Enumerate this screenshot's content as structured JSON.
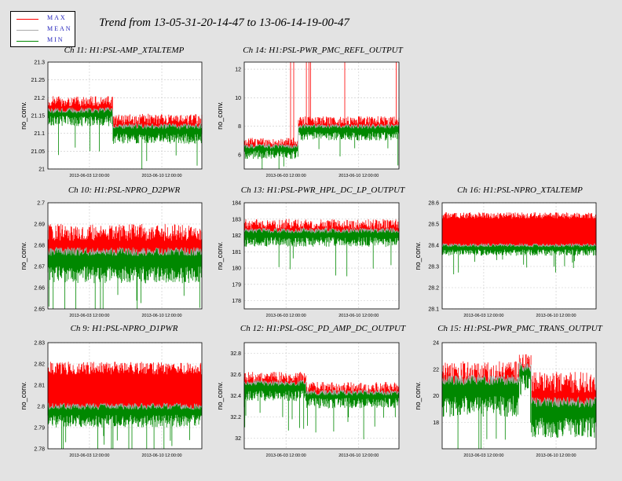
{
  "title": "Trend from 13-05-31-20-14-47 to 13-06-14-19-00-47",
  "legend": [
    {
      "label": "MAX",
      "color": "#ff0000"
    },
    {
      "label": "MEAN",
      "color": "#aaaaaa"
    },
    {
      "label": "MIN",
      "color": "#008800"
    }
  ],
  "chart_data": [
    {
      "type": "line",
      "title": "Ch 11: H1:PSL-AMP_XTALTEMP",
      "ylabel": "no_conv.",
      "ylim": [
        21,
        21.3
      ],
      "yticks": [
        21,
        21.05,
        21.1,
        21.15,
        21.2,
        21.25,
        21.3
      ],
      "xticks": [
        "2013-06-03 12:00:00",
        "2013-06-10 12:00:00"
      ],
      "segments": [
        [
          0,
          0.42,
          21.19,
          21.165,
          21.15
        ],
        [
          0.42,
          1,
          21.14,
          21.12,
          21.1
        ]
      ],
      "noise": 0.015,
      "spikes": []
    },
    {
      "type": "line",
      "title": "Ch 14: H1:PSL-PWR_PMC_REFL_OUTPUT",
      "ylabel": "no_conv.",
      "ylim": [
        5,
        12.5
      ],
      "yticks": [
        6,
        8,
        10,
        12
      ],
      "xticks": [
        "2013-06-03 12:00:00",
        "2013-06-10 12:00:00"
      ],
      "segments": [
        [
          0,
          0.35,
          6.9,
          6.6,
          6.3
        ],
        [
          0.35,
          1,
          8.4,
          8.0,
          7.6
        ]
      ],
      "ramp": true,
      "noise": 0.3,
      "spikes": [
        0.3,
        0.32,
        0.4,
        0.42,
        0.43,
        0.65,
        0.98
      ]
    },
    {
      "type": "line",
      "title": "Ch 10: H1:PSL-NPRO_D2PWR",
      "ylabel": "no_conv.",
      "ylim": [
        2.65,
        2.7
      ],
      "yticks": [
        2.65,
        2.66,
        2.67,
        2.68,
        2.69,
        2.7
      ],
      "xticks": [
        "2013-06-03 12:00:00",
        "2013-06-10 12:00:00"
      ],
      "segments": [
        [
          0,
          1,
          2.686,
          2.677,
          2.67
        ]
      ],
      "noise": 0.004,
      "spikes": []
    },
    {
      "type": "line",
      "title": "Ch 13: H1:PSL-PWR_HPL_DC_LP_OUTPUT",
      "ylabel": "no_conv.",
      "ylim": [
        177.5,
        184
      ],
      "yticks": [
        178,
        179,
        180,
        181,
        182,
        183,
        184
      ],
      "xticks": [
        "2013-06-03 12:00:00",
        "2013-06-10 12:00:00"
      ],
      "segments": [
        [
          0,
          1,
          182.7,
          182.3,
          181.9
        ]
      ],
      "noise": 0.3,
      "spikes": []
    },
    {
      "type": "line",
      "title": "Ch 16: H1:PSL-NPRO_XTALTEMP",
      "ylabel": "no_conv.",
      "ylim": [
        28.1,
        28.6
      ],
      "yticks": [
        28.1,
        28.2,
        28.3,
        28.4,
        28.5,
        28.6
      ],
      "xticks": [
        "2013-06-03 12:00:00",
        "2013-06-10 12:00:00"
      ],
      "segments": [
        [
          0,
          1,
          28.54,
          28.4,
          28.38
        ]
      ],
      "noise": 0.015,
      "spikes": []
    },
    {
      "type": "line",
      "title": "Ch 9: H1:PSL-NPRO_D1PWR",
      "ylabel": "no_conv.",
      "ylim": [
        2.78,
        2.83
      ],
      "yticks": [
        2.78,
        2.79,
        2.8,
        2.81,
        2.82,
        2.83
      ],
      "xticks": [
        "2013-06-03 12:00:00",
        "2013-06-10 12:00:00"
      ],
      "segments": [
        [
          0,
          1,
          2.818,
          2.8,
          2.796
        ]
      ],
      "noise": 0.003,
      "spikes": []
    },
    {
      "type": "line",
      "title": "Ch 12: H1:PSL-OSC_PD_AMP_DC_OUTPUT",
      "ylabel": "no_conv.",
      "ylim": [
        31.9,
        32.9
      ],
      "yticks": [
        32,
        32.2,
        32.4,
        32.6,
        32.8
      ],
      "xticks": [
        "2013-06-03 12:00:00",
        "2013-06-10 12:00:00"
      ],
      "segments": [
        [
          0,
          0.4,
          32.58,
          32.52,
          32.45
        ],
        [
          0.4,
          1,
          32.48,
          32.43,
          32.38
        ]
      ],
      "noise": 0.05,
      "spikes": []
    },
    {
      "type": "line",
      "title": "Ch 15: H1:PSL-PWR_PMC_TRANS_OUTPUT",
      "ylabel": "no_conv.",
      "ylim": [
        16,
        24
      ],
      "yticks": [
        18,
        20,
        22,
        24
      ],
      "xticks": [
        "2013-06-03 12:00:00",
        "2013-06-10 12:00:00"
      ],
      "segments": [
        [
          0,
          0.5,
          21.8,
          21.2,
          20.0
        ],
        [
          0.5,
          0.58,
          22.5,
          22.2,
          21.6
        ],
        [
          0.58,
          1,
          21.0,
          19.5,
          18.4
        ]
      ],
      "noise": 0.8,
      "spikes": []
    }
  ]
}
